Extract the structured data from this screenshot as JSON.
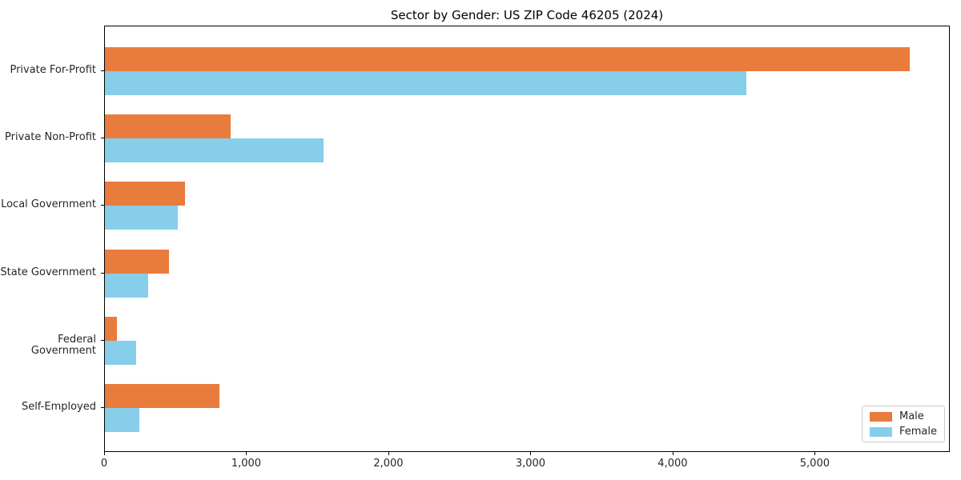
{
  "chart_data": {
    "type": "bar",
    "orientation": "horizontal",
    "title": "Sector by Gender: US ZIP Code 46205 (2024)",
    "categories": [
      "Private For-Profit",
      "Private Non-Profit",
      "Local Government",
      "State Government",
      "Federal Government",
      "Self-Employed"
    ],
    "series": [
      {
        "name": "Male",
        "color": "#e97c3c",
        "values": [
          5665,
          885,
          565,
          450,
          85,
          805
        ]
      },
      {
        "name": "Female",
        "color": "#87ceeb",
        "values": [
          4515,
          1540,
          510,
          305,
          220,
          245
        ]
      }
    ],
    "xlabel": "",
    "ylabel": "",
    "xlim": [
      0,
      5950
    ],
    "xticks": [
      0,
      1000,
      2000,
      3000,
      4000,
      5000
    ],
    "xtick_labels": [
      "0",
      "1,000",
      "2,000",
      "3,000",
      "4,000",
      "5,000"
    ],
    "grid": false,
    "legend_position": "lower right",
    "axis_color": "#000000",
    "text_color": "#262626",
    "background_color": "#ffffff"
  }
}
